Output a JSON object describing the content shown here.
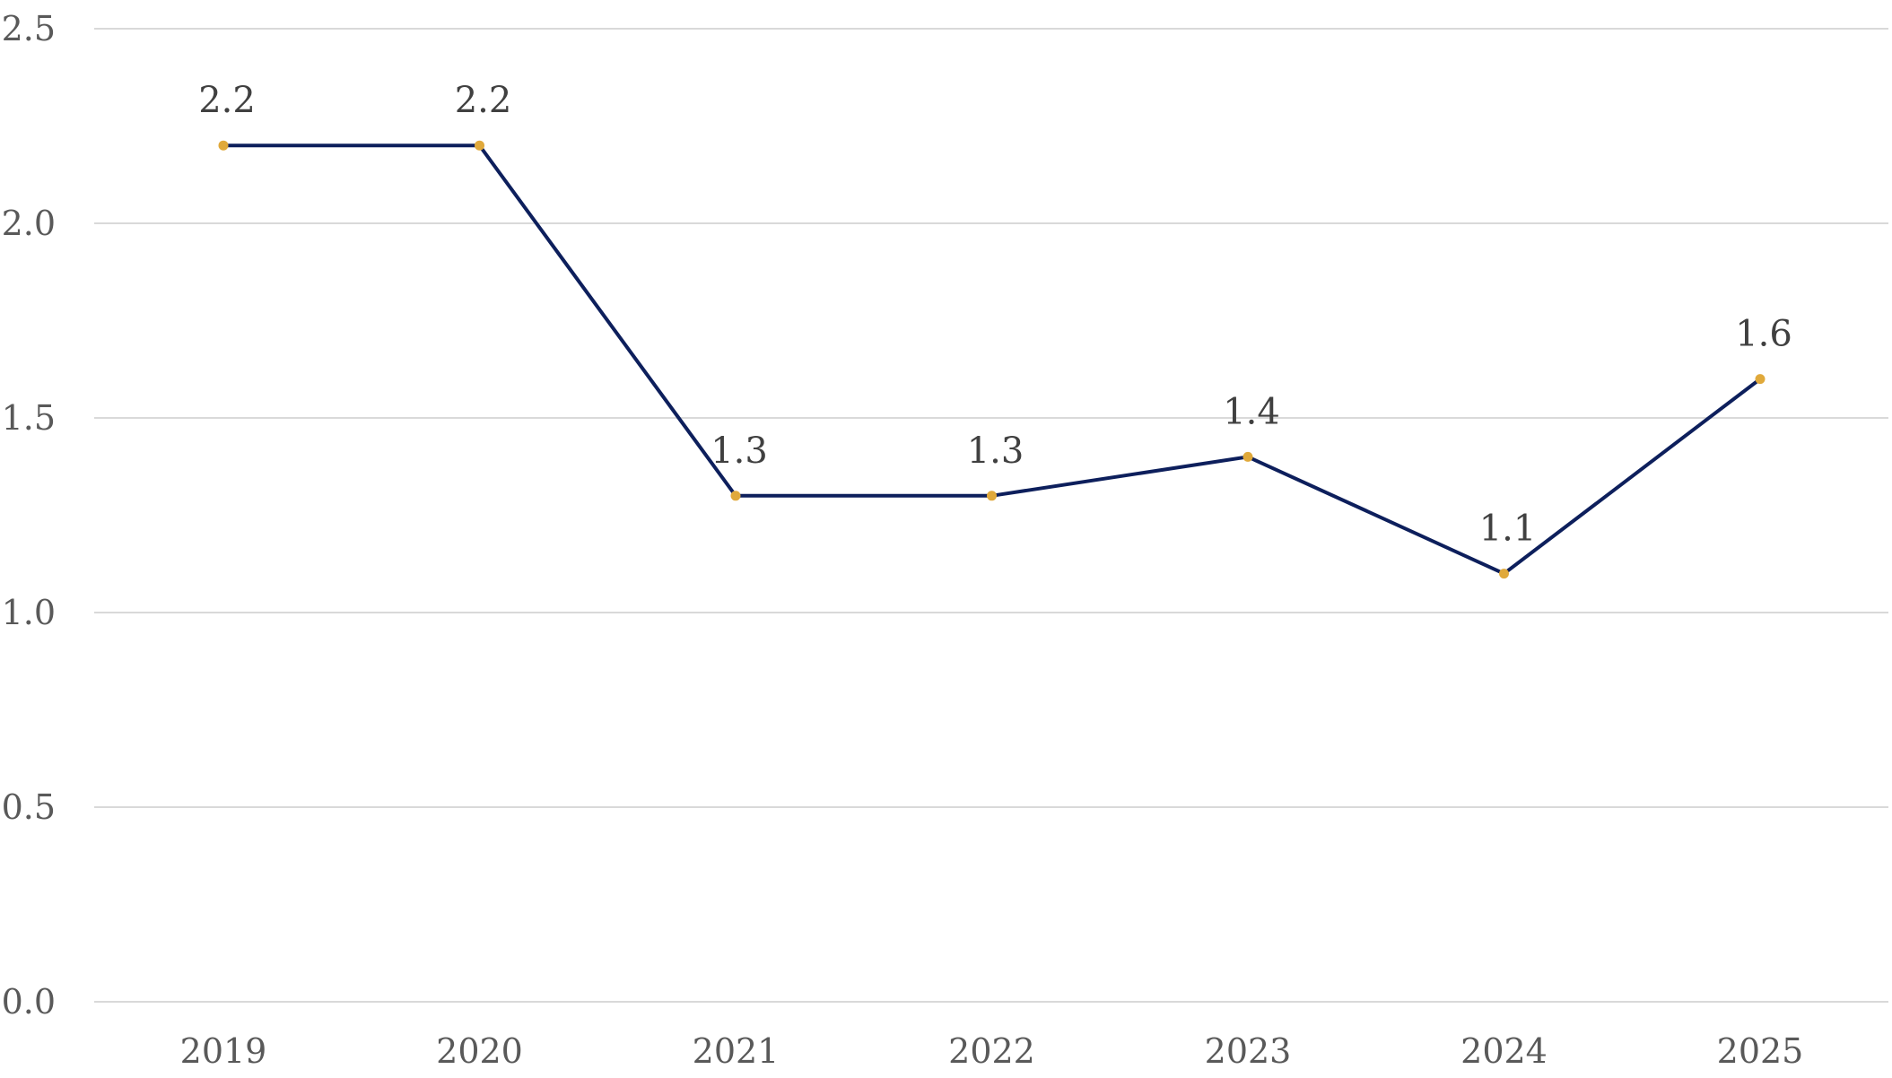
{
  "chart_data": {
    "type": "line",
    "title": "",
    "xlabel": "",
    "ylabel": "",
    "categories": [
      "2019",
      "2020",
      "2021",
      "2022",
      "2023",
      "2024",
      "2025"
    ],
    "series": [
      {
        "values": [
          2.2,
          2.2,
          1.3,
          1.3,
          1.4,
          1.1,
          1.6
        ],
        "data_labels": [
          "2.2",
          "2.2",
          "1.3",
          "1.3",
          "1.4",
          "1.1",
          "1.6"
        ],
        "line_color": "#0d1f5c",
        "marker_color": "#e0a93b"
      }
    ],
    "ylim": [
      0,
      2.5
    ],
    "y_ticks": [
      "0.0",
      "0.5",
      "1.0",
      "1.5",
      "2.0",
      "2.5"
    ],
    "grid": true,
    "legend": "none"
  }
}
